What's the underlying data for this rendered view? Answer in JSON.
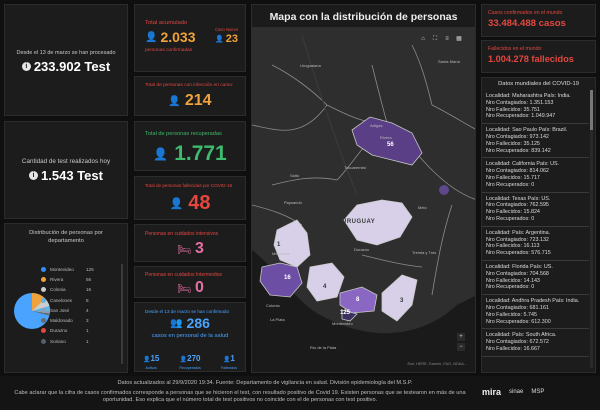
{
  "left": {
    "card1_label": "Desde el 13 de marzo se han procesado",
    "card1_value": "233.902 Test",
    "card2_label": "Cantidad de test realizados hoy",
    "card2_value": "1.543 Test",
    "distribution_title": "Distribución de personas por departamento",
    "pie_colors": [
      "#4aa3ff",
      "#f0a33a",
      "#cccccc",
      "#5fb3e8",
      "#8aa0b4",
      "#666a70",
      "#e3473f",
      "#55606a"
    ],
    "legend": [
      {
        "label": "Montevideo",
        "value": "125",
        "color": "#2f8fff"
      },
      {
        "label": "Rivera",
        "value": "56",
        "color": "#f0a33a"
      },
      {
        "label": "Colonia",
        "value": "16",
        "color": "#cccccc"
      },
      {
        "label": "Canelones",
        "value": "8",
        "color": "#5fb3e8"
      },
      {
        "label": "San José",
        "value": "4",
        "color": "#8aa0b4"
      },
      {
        "label": "Maldonado",
        "value": "3",
        "color": "#666a70"
      },
      {
        "label": "Durazno",
        "value": "1",
        "color": "#e3473f"
      },
      {
        "label": "Soriano",
        "value": "1",
        "color": "#55606a"
      }
    ]
  },
  "mid": {
    "total_label": "Total acumulado",
    "total_value": "2.033",
    "total_sub": "personas confirmadas",
    "unknown_label": "Caso Nuevo",
    "unknown_value": "23",
    "active_label": "Total de personas con infección en curso:",
    "active_value": "214",
    "recovered_label": "Total de personas recuperadas",
    "recovered_value": "1.771",
    "deaths_label": "Total de personas fallecidas por COVID-19",
    "deaths_value": "48",
    "icu_label": "Personas en cuidados intensivos",
    "icu_value": "3",
    "intermediate_label": "Personas en cuidados Intermedios",
    "intermediate_value": "0",
    "health_label": "Desde el 13 de marzo se han confirmado",
    "health_value": "286",
    "health_sub": "casos en personal de la salud",
    "health_stats": [
      {
        "value": "15",
        "label": "Activos"
      },
      {
        "value": "270",
        "label": "Recuperados"
      },
      {
        "value": "1",
        "label": "Fallecidos"
      }
    ]
  },
  "map": {
    "title": "Mapa con la distribución de personas",
    "country_label": "URUGUAY",
    "place_labels": [
      "Uruguaiana",
      "Santa María",
      "Artigas",
      "Rivera",
      "Tacuarembó",
      "Salto",
      "Paysandú",
      "Melo",
      "Durazno",
      "Treinta y Tres",
      "Mercedes",
      "Colonia",
      "La Plata",
      "Montevideo",
      "Río de la Plata"
    ],
    "region_numbers": [
      "56",
      "1",
      "16",
      "4",
      "8",
      "3",
      "125"
    ],
    "attribution": "Esri, HERE, Garmin, FAO, NOAA..."
  },
  "right": {
    "world_cases_label": "Casos confirmados en el mundo",
    "world_cases_value": "33.484.488 casos",
    "world_deaths_label": "Fallecidos en el mundo",
    "world_deaths_value": "1.004.278 fallecidos",
    "world_list_title": "Datos mundiales del COVID-19",
    "world_items": [
      {
        "l1": "Localidad: Maharashtra País: India.",
        "l2": "Nro Contagiados: 1.351.153",
        "l3": "Nro Fallecidos: 35.751",
        "l4": "Nro Recuperados: 1.049.947"
      },
      {
        "l1": "Localidad: Sao Paulo País: Brazil.",
        "l2": "Nro Contagiados: 973.142",
        "l3": "Nro Fallecidos: 35.125",
        "l4": "Nro Recuperados: 839.142"
      },
      {
        "l1": "Localidad: California País: US.",
        "l2": "Nro Contagiados: 814.062",
        "l3": "Nro Fallecidos: 15.717",
        "l4": "Nro Recuperados: 0"
      },
      {
        "l1": "Localidad: Texas País: US.",
        "l2": "Nro Contagiados: 762.595",
        "l3": "Nro Fallecidos: 15.824",
        "l4": "Nro Recuperados: 0"
      },
      {
        "l1": "Localidad: País: Argentina.",
        "l2": "Nro Contagiados: 723.132",
        "l3": "Nro Fallecidos: 16.113",
        "l4": "Nro Recuperados: 576.715"
      },
      {
        "l1": "Localidad: Florida País: US.",
        "l2": "Nro Contagiados: 704.568",
        "l3": "Nro Fallecidos: 14.143",
        "l4": "Nro Recuperados: 0"
      },
      {
        "l1": "Localidad: Andhra Pradesh País: India.",
        "l2": "Nro Contagiados: 681.161",
        "l3": "Nro Fallecidos: 5.745",
        "l4": "Nro Recuperados: 612.300"
      },
      {
        "l1": "Localidad: País: South Africa.",
        "l2": "Nro Contagiados: 672.572",
        "l3": "Nro Fallecidos: 16.667",
        "l4": ""
      }
    ]
  },
  "footer": {
    "updated": "Datos actualizados al 29/9/2020 19:34. Fuente: Departamento de vigilancia en salud. División epidemiología del M.S.P.",
    "disclaimer": "Cabe aclarar que la cifra de casos confirmados corresponde a personas que se hicieron el test, con resultado positivo de Covid 19. Existen personas que se testearon en más de una oportunidad. Eso explica que el número total de test positivos no coincide con el de personas con test positivo.",
    "logos": [
      "mira",
      "sinae",
      "MSP"
    ]
  }
}
